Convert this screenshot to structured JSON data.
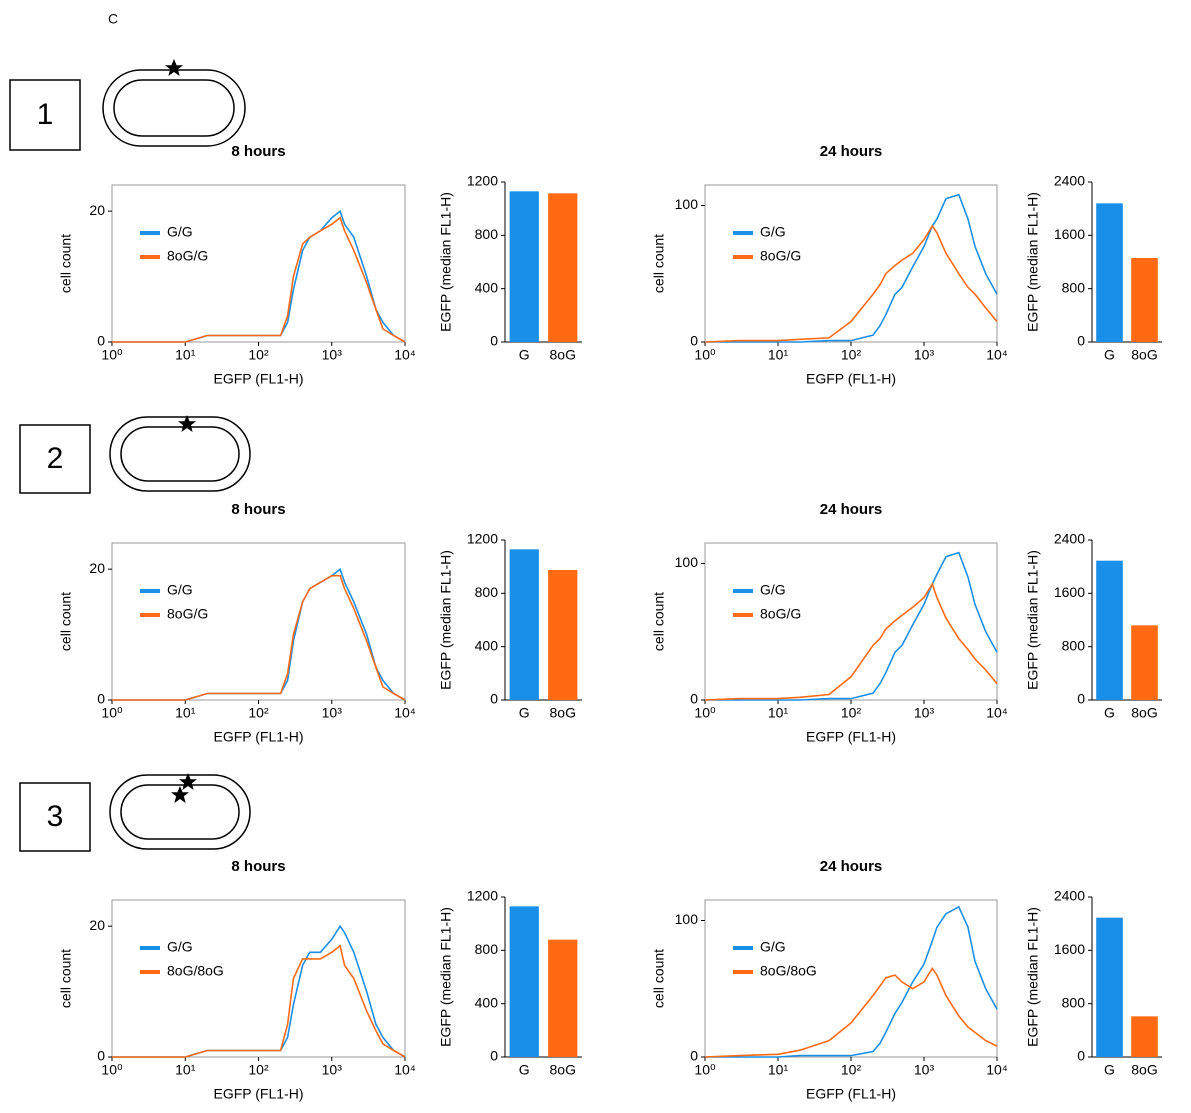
{
  "panel_label": "C",
  "constructs": [
    "1",
    "2",
    "3"
  ],
  "chart_data": [
    {
      "type": "line",
      "title": "8 hours",
      "x_label": "EGFP (FL1-H)",
      "y_label": "cell count",
      "log_x": true,
      "xlim": [
        1,
        10000
      ],
      "xticks": [
        {
          "value": 1,
          "label": "10⁰"
        },
        {
          "value": 10,
          "label": "10¹"
        },
        {
          "value": 100,
          "label": "10²"
        },
        {
          "value": 1000,
          "label": "10³"
        },
        {
          "value": 10000,
          "label": "10⁴"
        }
      ],
      "ylim": [
        0,
        24
      ],
      "yticks": [
        0,
        20
      ],
      "x": [
        1,
        3,
        10,
        20,
        50,
        100,
        200,
        250,
        300,
        400,
        500,
        700,
        1000,
        1300,
        1500,
        2000,
        3000,
        4000,
        5000,
        7000,
        10000
      ],
      "series": [
        {
          "name": "G/G",
          "color": "#1a8fe8",
          "values": [
            0,
            0,
            0,
            1,
            1,
            1,
            1,
            3,
            8,
            14,
            16,
            17,
            19,
            20,
            18,
            16,
            10,
            5,
            3,
            1,
            0
          ]
        },
        {
          "name": "8oG/G",
          "color": "#ff6a13",
          "values": [
            0,
            0,
            0,
            1,
            1,
            1,
            1,
            4,
            10,
            15,
            16,
            17,
            18,
            19,
            17,
            14,
            9,
            5,
            2,
            1,
            0
          ]
        }
      ]
    },
    {
      "type": "bar",
      "y_label": "EGFP (median FL1-H)",
      "categories": [
        "G",
        "8oG"
      ],
      "values": [
        1130,
        1115
      ],
      "colors": [
        "#1a8fe8",
        "#ff6a13"
      ],
      "ylim": [
        0,
        1200
      ],
      "yticks": [
        0,
        400,
        800,
        1200
      ]
    },
    {
      "type": "line",
      "title": "24 hours",
      "x_label": "EGFP (FL1-H)",
      "y_label": "cell count",
      "log_x": true,
      "xlim": [
        1,
        10000
      ],
      "xticks": [
        {
          "value": 1,
          "label": "10⁰"
        },
        {
          "value": 10,
          "label": "10¹"
        },
        {
          "value": 100,
          "label": "10²"
        },
        {
          "value": 1000,
          "label": "10³"
        },
        {
          "value": 10000,
          "label": "10⁴"
        }
      ],
      "ylim": [
        0,
        115
      ],
      "yticks": [
        0,
        100
      ],
      "x": [
        1,
        3,
        10,
        20,
        50,
        100,
        200,
        250,
        300,
        400,
        500,
        700,
        1000,
        1300,
        1500,
        2000,
        3000,
        4000,
        5000,
        7000,
        10000
      ],
      "series": [
        {
          "name": "G/G",
          "color": "#1a8fe8",
          "values": [
            0,
            0,
            0,
            0,
            1,
            1,
            5,
            12,
            20,
            35,
            40,
            55,
            70,
            85,
            90,
            105,
            108,
            90,
            70,
            50,
            35
          ]
        },
        {
          "name": "8oG/G",
          "color": "#ff6a13",
          "values": [
            0,
            1,
            1,
            2,
            3,
            15,
            35,
            42,
            50,
            56,
            60,
            65,
            75,
            85,
            80,
            65,
            50,
            40,
            35,
            25,
            15
          ]
        }
      ]
    },
    {
      "type": "bar",
      "y_label": "EGFP (median FL1-H)",
      "categories": [
        "G",
        "8oG"
      ],
      "values": [
        2080,
        1260
      ],
      "colors": [
        "#1a8fe8",
        "#ff6a13"
      ],
      "ylim": [
        0,
        2400
      ],
      "yticks": [
        0,
        800,
        1600,
        2400
      ]
    },
    {
      "type": "line",
      "title": "8 hours",
      "x_label": "EGFP (FL1-H)",
      "y_label": "cell count",
      "log_x": true,
      "xlim": [
        1,
        10000
      ],
      "xticks": [
        {
          "value": 1,
          "label": "10⁰"
        },
        {
          "value": 10,
          "label": "10¹"
        },
        {
          "value": 100,
          "label": "10²"
        },
        {
          "value": 1000,
          "label": "10³"
        },
        {
          "value": 10000,
          "label": "10⁴"
        }
      ],
      "ylim": [
        0,
        24
      ],
      "yticks": [
        0,
        20
      ],
      "x": [
        1,
        3,
        10,
        20,
        50,
        100,
        200,
        250,
        300,
        400,
        500,
        700,
        1000,
        1300,
        1500,
        2000,
        3000,
        4000,
        5000,
        7000,
        10000
      ],
      "series": [
        {
          "name": "G/G",
          "color": "#1a8fe8",
          "values": [
            0,
            0,
            0,
            1,
            1,
            1,
            1,
            3,
            9,
            15,
            17,
            18,
            19,
            20,
            18,
            15,
            10,
            5,
            3,
            1,
            0
          ]
        },
        {
          "name": "8oG/G",
          "color": "#ff6a13",
          "values": [
            0,
            0,
            0,
            1,
            1,
            1,
            1,
            4,
            10,
            15,
            17,
            18,
            19,
            19,
            17,
            14,
            9,
            5,
            2,
            1,
            0
          ]
        }
      ]
    },
    {
      "type": "bar",
      "y_label": "EGFP (median FL1-H)",
      "categories": [
        "G",
        "8oG"
      ],
      "values": [
        1130,
        975
      ],
      "colors": [
        "#1a8fe8",
        "#ff6a13"
      ],
      "ylim": [
        0,
        1200
      ],
      "yticks": [
        0,
        400,
        800,
        1200
      ]
    },
    {
      "type": "line",
      "title": "24 hours",
      "x_label": "EGFP (FL1-H)",
      "y_label": "cell count",
      "log_x": true,
      "xlim": [
        1,
        10000
      ],
      "xticks": [
        {
          "value": 1,
          "label": "10⁰"
        },
        {
          "value": 10,
          "label": "10¹"
        },
        {
          "value": 100,
          "label": "10²"
        },
        {
          "value": 1000,
          "label": "10³"
        },
        {
          "value": 10000,
          "label": "10⁴"
        }
      ],
      "ylim": [
        0,
        115
      ],
      "yticks": [
        0,
        100
      ],
      "x": [
        1,
        3,
        10,
        20,
        50,
        100,
        200,
        250,
        300,
        400,
        500,
        700,
        1000,
        1300,
        1500,
        2000,
        3000,
        4000,
        5000,
        7000,
        10000
      ],
      "series": [
        {
          "name": "G/G",
          "color": "#1a8fe8",
          "values": [
            0,
            0,
            0,
            0,
            1,
            1,
            5,
            12,
            20,
            35,
            40,
            55,
            70,
            85,
            92,
            105,
            108,
            90,
            70,
            50,
            35
          ]
        },
        {
          "name": "8oG/G",
          "color": "#ff6a13",
          "values": [
            0,
            1,
            1,
            2,
            4,
            17,
            40,
            45,
            52,
            58,
            62,
            68,
            75,
            85,
            75,
            60,
            45,
            37,
            30,
            22,
            12
          ]
        }
      ]
    },
    {
      "type": "bar",
      "y_label": "EGFP (median FL1-H)",
      "categories": [
        "G",
        "8oG"
      ],
      "values": [
        2090,
        1120
      ],
      "colors": [
        "#1a8fe8",
        "#ff6a13"
      ],
      "ylim": [
        0,
        2400
      ],
      "yticks": [
        0,
        800,
        1600,
        2400
      ]
    },
    {
      "type": "line",
      "title": "8 hours",
      "x_label": "EGFP (FL1-H)",
      "y_label": "cell count",
      "log_x": true,
      "xlim": [
        1,
        10000
      ],
      "xticks": [
        {
          "value": 1,
          "label": "10⁰"
        },
        {
          "value": 10,
          "label": "10¹"
        },
        {
          "value": 100,
          "label": "10²"
        },
        {
          "value": 1000,
          "label": "10³"
        },
        {
          "value": 10000,
          "label": "10⁴"
        }
      ],
      "ylim": [
        0,
        24
      ],
      "yticks": [
        0,
        20
      ],
      "x": [
        1,
        3,
        10,
        20,
        50,
        100,
        200,
        250,
        300,
        400,
        500,
        700,
        1000,
        1300,
        1500,
        2000,
        3000,
        4000,
        5000,
        7000,
        10000
      ],
      "series": [
        {
          "name": "G/G",
          "color": "#1a8fe8",
          "values": [
            0,
            0,
            0,
            1,
            1,
            1,
            1,
            3,
            8,
            14,
            16,
            16,
            18,
            20,
            19,
            16,
            10,
            5,
            3,
            1,
            0
          ]
        },
        {
          "name": "8oG/8oG",
          "color": "#ff6a13",
          "values": [
            0,
            0,
            0,
            1,
            1,
            1,
            1,
            5,
            12,
            15,
            15,
            15,
            16,
            17,
            14,
            12,
            7,
            4,
            2,
            1,
            0
          ]
        }
      ]
    },
    {
      "type": "bar",
      "y_label": "EGFP (median FL1-H)",
      "categories": [
        "G",
        "8oG"
      ],
      "values": [
        1130,
        880
      ],
      "colors": [
        "#1a8fe8",
        "#ff6a13"
      ],
      "ylim": [
        0,
        1200
      ],
      "yticks": [
        0,
        400,
        800,
        1200
      ]
    },
    {
      "type": "line",
      "title": "24 hours",
      "x_label": "EGFP (FL1-H)",
      "y_label": "cell count",
      "log_x": true,
      "xlim": [
        1,
        10000
      ],
      "xticks": [
        {
          "value": 1,
          "label": "10⁰"
        },
        {
          "value": 10,
          "label": "10¹"
        },
        {
          "value": 100,
          "label": "10²"
        },
        {
          "value": 1000,
          "label": "10³"
        },
        {
          "value": 10000,
          "label": "10⁴"
        }
      ],
      "ylim": [
        0,
        115
      ],
      "yticks": [
        0,
        100
      ],
      "x": [
        1,
        3,
        10,
        20,
        50,
        100,
        200,
        250,
        300,
        400,
        500,
        700,
        1000,
        1300,
        1500,
        2000,
        3000,
        4000,
        5000,
        7000,
        10000
      ],
      "series": [
        {
          "name": "G/G",
          "color": "#1a8fe8",
          "values": [
            0,
            0,
            0,
            1,
            1,
            1,
            4,
            10,
            18,
            32,
            40,
            55,
            68,
            85,
            95,
            105,
            110,
            95,
            70,
            50,
            35
          ]
        },
        {
          "name": "8oG/8oG",
          "color": "#ff6a13",
          "values": [
            0,
            1,
            2,
            5,
            12,
            25,
            45,
            52,
            58,
            60,
            55,
            50,
            55,
            65,
            60,
            45,
            30,
            22,
            18,
            12,
            8
          ]
        }
      ]
    },
    {
      "type": "bar",
      "y_label": "EGFP (median FL1-H)",
      "categories": [
        "G",
        "8oG"
      ],
      "values": [
        2090,
        610
      ],
      "colors": [
        "#1a8fe8",
        "#ff6a13"
      ],
      "ylim": [
        0,
        2400
      ],
      "yticks": [
        0,
        800,
        1600,
        2400
      ]
    }
  ]
}
